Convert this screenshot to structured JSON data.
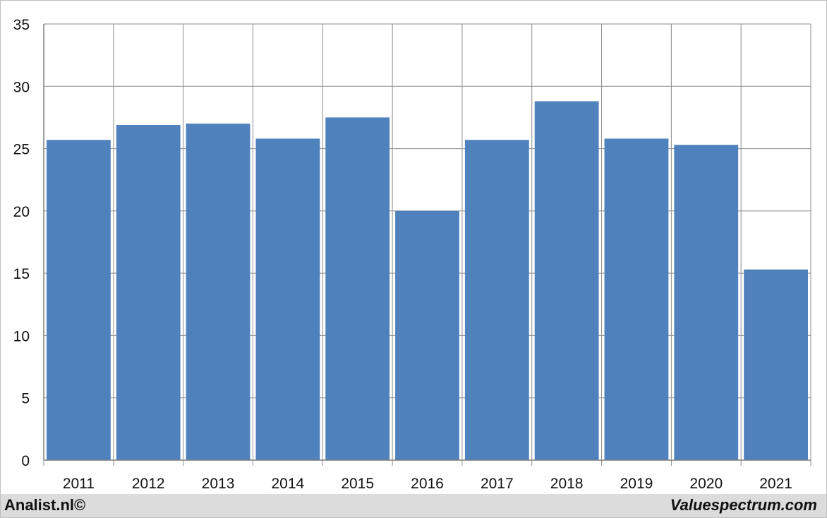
{
  "chart_data": {
    "type": "bar",
    "title": "",
    "xlabel": "",
    "ylabel": "",
    "categories": [
      "2011",
      "2012",
      "2013",
      "2014",
      "2015",
      "2016",
      "2017",
      "2018",
      "2019",
      "2020",
      "2021"
    ],
    "values": [
      25.7,
      26.9,
      27.0,
      25.8,
      27.5,
      20.0,
      25.7,
      28.8,
      25.8,
      25.3,
      15.3
    ],
    "ylim": [
      0,
      35
    ],
    "yticks": [
      "0",
      "5",
      "10",
      "15",
      "20",
      "25",
      "30",
      "35"
    ],
    "grid": true,
    "bar_color": "#4f81bd"
  },
  "footer": {
    "left": "Analist.nl©",
    "right": "Valuespectrum.com"
  }
}
